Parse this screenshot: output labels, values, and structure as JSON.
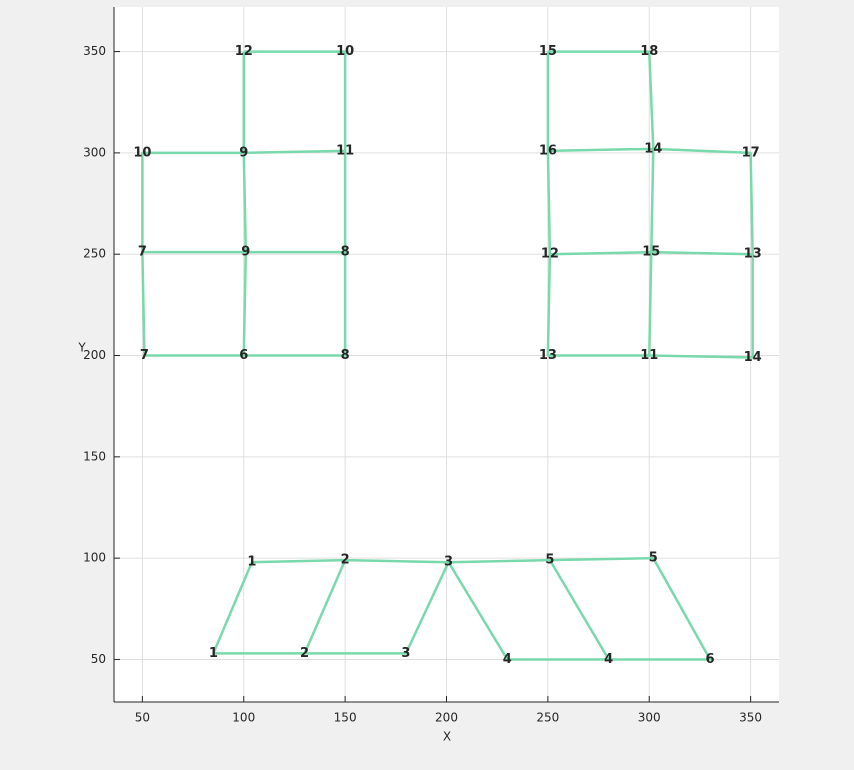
{
  "chart_data": {
    "type": "graph",
    "xlabel": "X",
    "ylabel": "Y",
    "xlim": [
      36,
      364
    ],
    "ylim": [
      29,
      372
    ],
    "xticks": [
      50,
      100,
      150,
      200,
      250,
      300,
      350
    ],
    "yticks": [
      50,
      100,
      150,
      200,
      250,
      300,
      350
    ],
    "grid": true,
    "edge_color": "#79d9ac",
    "series": [
      {
        "x": [
          100,
          150,
          150,
          150,
          150,
          100,
          51,
          50,
          50,
          100,
          100
        ],
        "y": [
          350,
          350,
          301,
          251,
          200,
          200,
          200,
          251,
          300,
          300,
          350
        ]
      },
      {
        "x": [
          100,
          150
        ],
        "y": [
          300,
          301
        ]
      },
      {
        "x": [
          100,
          101,
          100
        ],
        "y": [
          300,
          251,
          200
        ]
      },
      {
        "x": [
          50,
          101,
          150
        ],
        "y": [
          251,
          251,
          251
        ]
      },
      {
        "x": [
          250,
          300,
          302,
          301,
          300,
          351,
          351,
          350,
          302,
          250,
          250
        ],
        "y": [
          350,
          350,
          302,
          251,
          200,
          199,
          250,
          300,
          302,
          301,
          350
        ]
      },
      {
        "x": [
          250,
          251,
          250,
          300
        ],
        "y": [
          301,
          250,
          200,
          200
        ]
      },
      {
        "x": [
          251,
          301,
          351
        ],
        "y": [
          250,
          251,
          250
        ]
      },
      {
        "x": [
          85,
          104,
          150,
          201,
          251,
          302,
          330,
          280,
          230,
          201,
          180,
          130,
          85
        ],
        "y": [
          53,
          98,
          99,
          98,
          99,
          100,
          50,
          50,
          50,
          98,
          53,
          53,
          53
        ]
      },
      {
        "x": [
          130,
          150
        ],
        "y": [
          53,
          99
        ]
      },
      {
        "x": [
          251,
          280
        ],
        "y": [
          99,
          50
        ]
      }
    ],
    "labels": [
      {
        "text": "12",
        "x": 100,
        "y": 350,
        "color": "#d01010"
      },
      {
        "text": "10",
        "x": 150,
        "y": 350,
        "color": "#0a0ad0"
      },
      {
        "text": "10",
        "x": 50,
        "y": 300,
        "color": "#d01010"
      },
      {
        "text": "9",
        "x": 100,
        "y": 300,
        "color": "#0a0ad0"
      },
      {
        "text": "11",
        "x": 150,
        "y": 301,
        "color": "#d01010"
      },
      {
        "text": "7",
        "x": 50,
        "y": 251,
        "color": "#0a0ad0"
      },
      {
        "text": "9",
        "x": 101,
        "y": 251,
        "color": "#d01010"
      },
      {
        "text": "8",
        "x": 150,
        "y": 251,
        "color": "#0a0ad0"
      },
      {
        "text": "7",
        "x": 51,
        "y": 200,
        "color": "#d01010"
      },
      {
        "text": "6",
        "x": 100,
        "y": 200,
        "color": "#0a0ad0"
      },
      {
        "text": "8",
        "x": 150,
        "y": 200,
        "color": "#d01010"
      },
      {
        "text": "15",
        "x": 250,
        "y": 350,
        "color": "#0a0ad0"
      },
      {
        "text": "18",
        "x": 300,
        "y": 350,
        "color": "#d01010"
      },
      {
        "text": "16",
        "x": 250,
        "y": 301,
        "color": "#d01010"
      },
      {
        "text": "14",
        "x": 302,
        "y": 302,
        "color": "#0a0ad0"
      },
      {
        "text": "17",
        "x": 350,
        "y": 300,
        "color": "#d01010"
      },
      {
        "text": "12",
        "x": 251,
        "y": 250,
        "color": "#0a0ad0"
      },
      {
        "text": "15",
        "x": 301,
        "y": 251,
        "color": "#d01010"
      },
      {
        "text": "13",
        "x": 351,
        "y": 250,
        "color": "#0a0ad0"
      },
      {
        "text": "13",
        "x": 250,
        "y": 200,
        "color": "#d01010"
      },
      {
        "text": "11",
        "x": 300,
        "y": 200,
        "color": "#0a0ad0"
      },
      {
        "text": "14",
        "x": 351,
        "y": 199,
        "color": "#d01010"
      },
      {
        "text": "1",
        "x": 104,
        "y": 98,
        "color": "#0a0ad0"
      },
      {
        "text": "2",
        "x": 150,
        "y": 99,
        "color": "#d01010"
      },
      {
        "text": "3",
        "x": 201,
        "y": 98,
        "color": "#0a0ad0"
      },
      {
        "text": "5",
        "x": 251,
        "y": 99,
        "color": "#d01010"
      },
      {
        "text": "5",
        "x": 302,
        "y": 100,
        "color": "#0a0ad0"
      },
      {
        "text": "1",
        "x": 85,
        "y": 53,
        "color": "#d01010"
      },
      {
        "text": "2",
        "x": 130,
        "y": 53,
        "color": "#0a0ad0"
      },
      {
        "text": "3",
        "x": 180,
        "y": 53,
        "color": "#d01010"
      },
      {
        "text": "4",
        "x": 230,
        "y": 50,
        "color": "#d01010"
      },
      {
        "text": "4",
        "x": 280,
        "y": 50,
        "color": "#0a0ad0"
      },
      {
        "text": "6",
        "x": 330,
        "y": 50,
        "color": "#d01010"
      }
    ]
  }
}
